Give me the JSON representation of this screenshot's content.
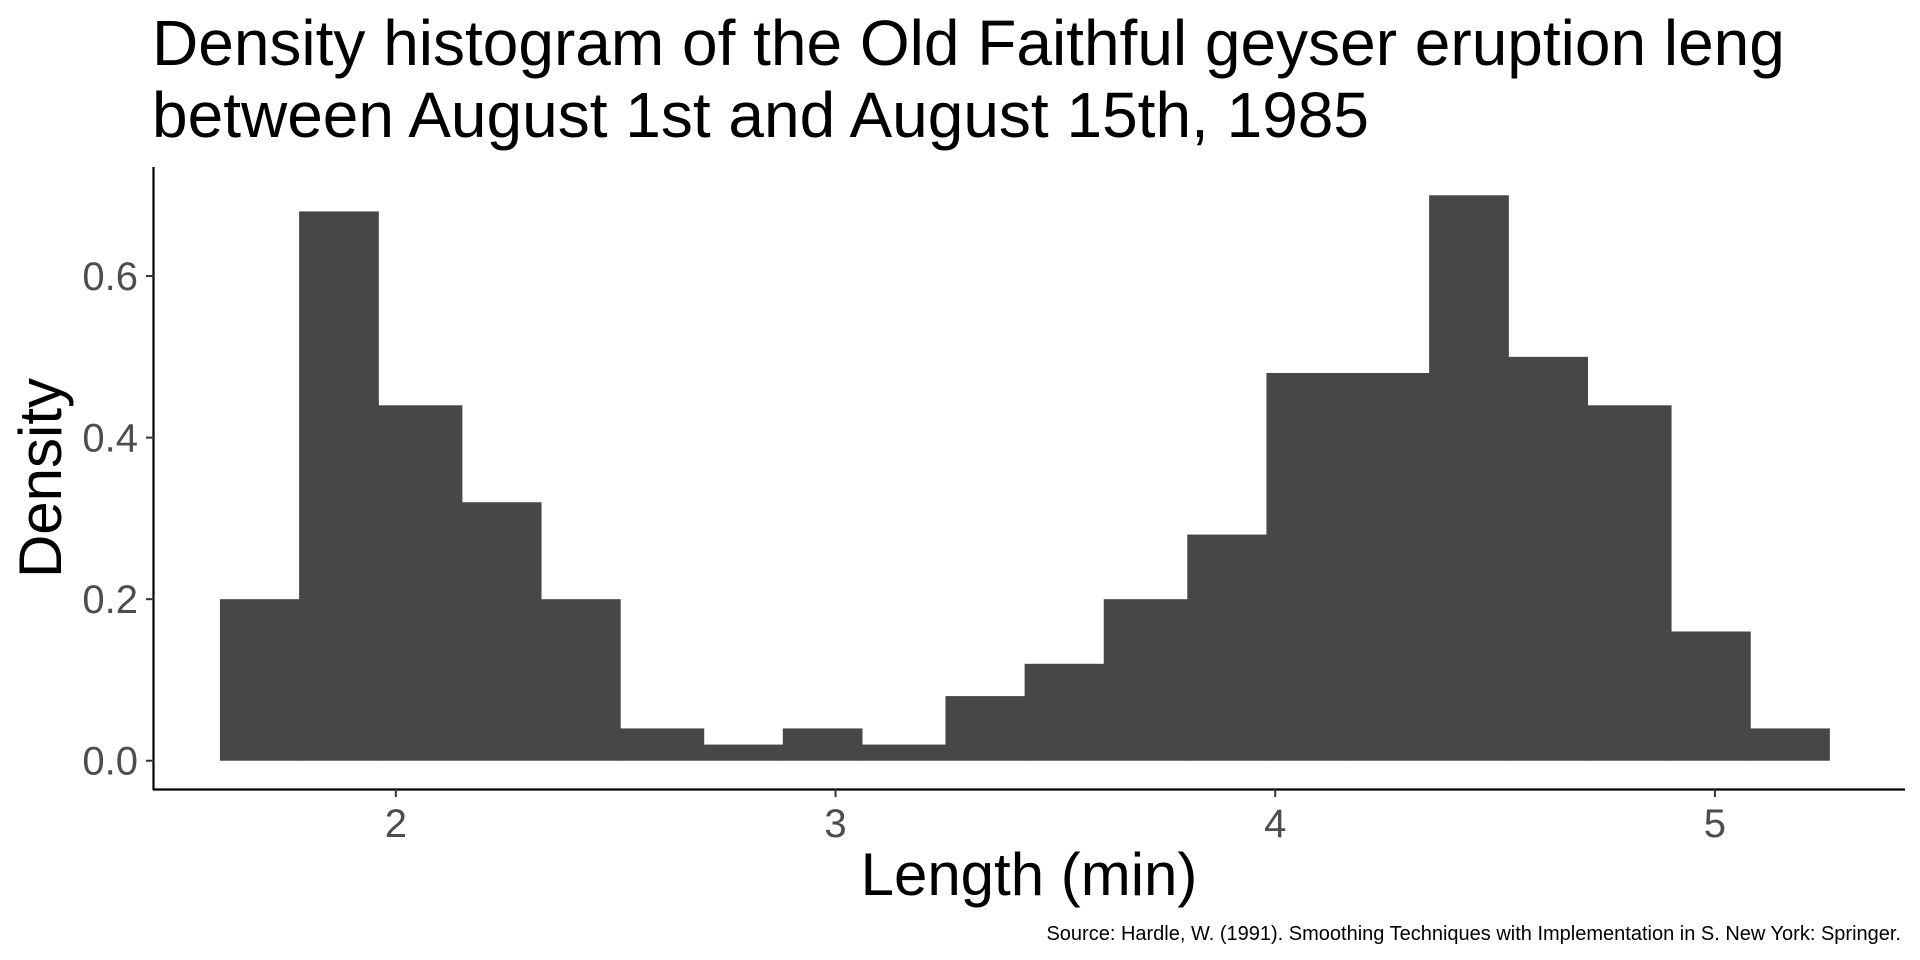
{
  "chart_data": {
    "type": "bar",
    "title_lines": [
      "Density histogram of the Old Faithful geyser eruption leng",
      "between August 1st and August 15th, 1985"
    ],
    "xlabel": "Length (min)",
    "ylabel": "Density",
    "caption": "Source: Hardle, W. (1991). Smoothing Techniques with Implementation in S. New York: Springer.",
    "xlim": [
      1.45,
      5.43
    ],
    "ylim": [
      -0.035,
      0.735
    ],
    "x_ticks": [
      2,
      3,
      4,
      5
    ],
    "x_tick_labels": [
      "2",
      "3",
      "4",
      "5"
    ],
    "y_ticks": [
      0.0,
      0.2,
      0.4,
      0.6
    ],
    "y_tick_labels": [
      "0.0",
      "0.2",
      "0.4",
      "0.6"
    ],
    "grid": false,
    "bar_color": "#474747",
    "bins": [
      {
        "x0": 1.6,
        "x1": 1.78,
        "density": 0.2
      },
      {
        "x0": 1.78,
        "x1": 1.96,
        "density": 0.68
      },
      {
        "x0": 1.96,
        "x1": 2.15,
        "density": 0.44
      },
      {
        "x0": 2.15,
        "x1": 2.33,
        "density": 0.32
      },
      {
        "x0": 2.33,
        "x1": 2.51,
        "density": 0.2
      },
      {
        "x0": 2.51,
        "x1": 2.7,
        "density": 0.04
      },
      {
        "x0": 2.7,
        "x1": 2.88,
        "density": 0.02
      },
      {
        "x0": 2.88,
        "x1": 3.06,
        "density": 0.04
      },
      {
        "x0": 3.06,
        "x1": 3.25,
        "density": 0.02
      },
      {
        "x0": 3.25,
        "x1": 3.43,
        "density": 0.08
      },
      {
        "x0": 3.43,
        "x1": 3.61,
        "density": 0.12
      },
      {
        "x0": 3.61,
        "x1": 3.8,
        "density": 0.2
      },
      {
        "x0": 3.8,
        "x1": 3.98,
        "density": 0.28
      },
      {
        "x0": 3.98,
        "x1": 4.16,
        "density": 0.48
      },
      {
        "x0": 4.16,
        "x1": 4.35,
        "density": 0.48
      },
      {
        "x0": 4.35,
        "x1": 4.53,
        "density": 0.7
      },
      {
        "x0": 4.53,
        "x1": 4.71,
        "density": 0.5
      },
      {
        "x0": 4.71,
        "x1": 4.9,
        "density": 0.44
      },
      {
        "x0": 4.9,
        "x1": 5.08,
        "density": 0.16
      },
      {
        "x0": 5.08,
        "x1": 5.26,
        "density": 0.04
      }
    ]
  }
}
